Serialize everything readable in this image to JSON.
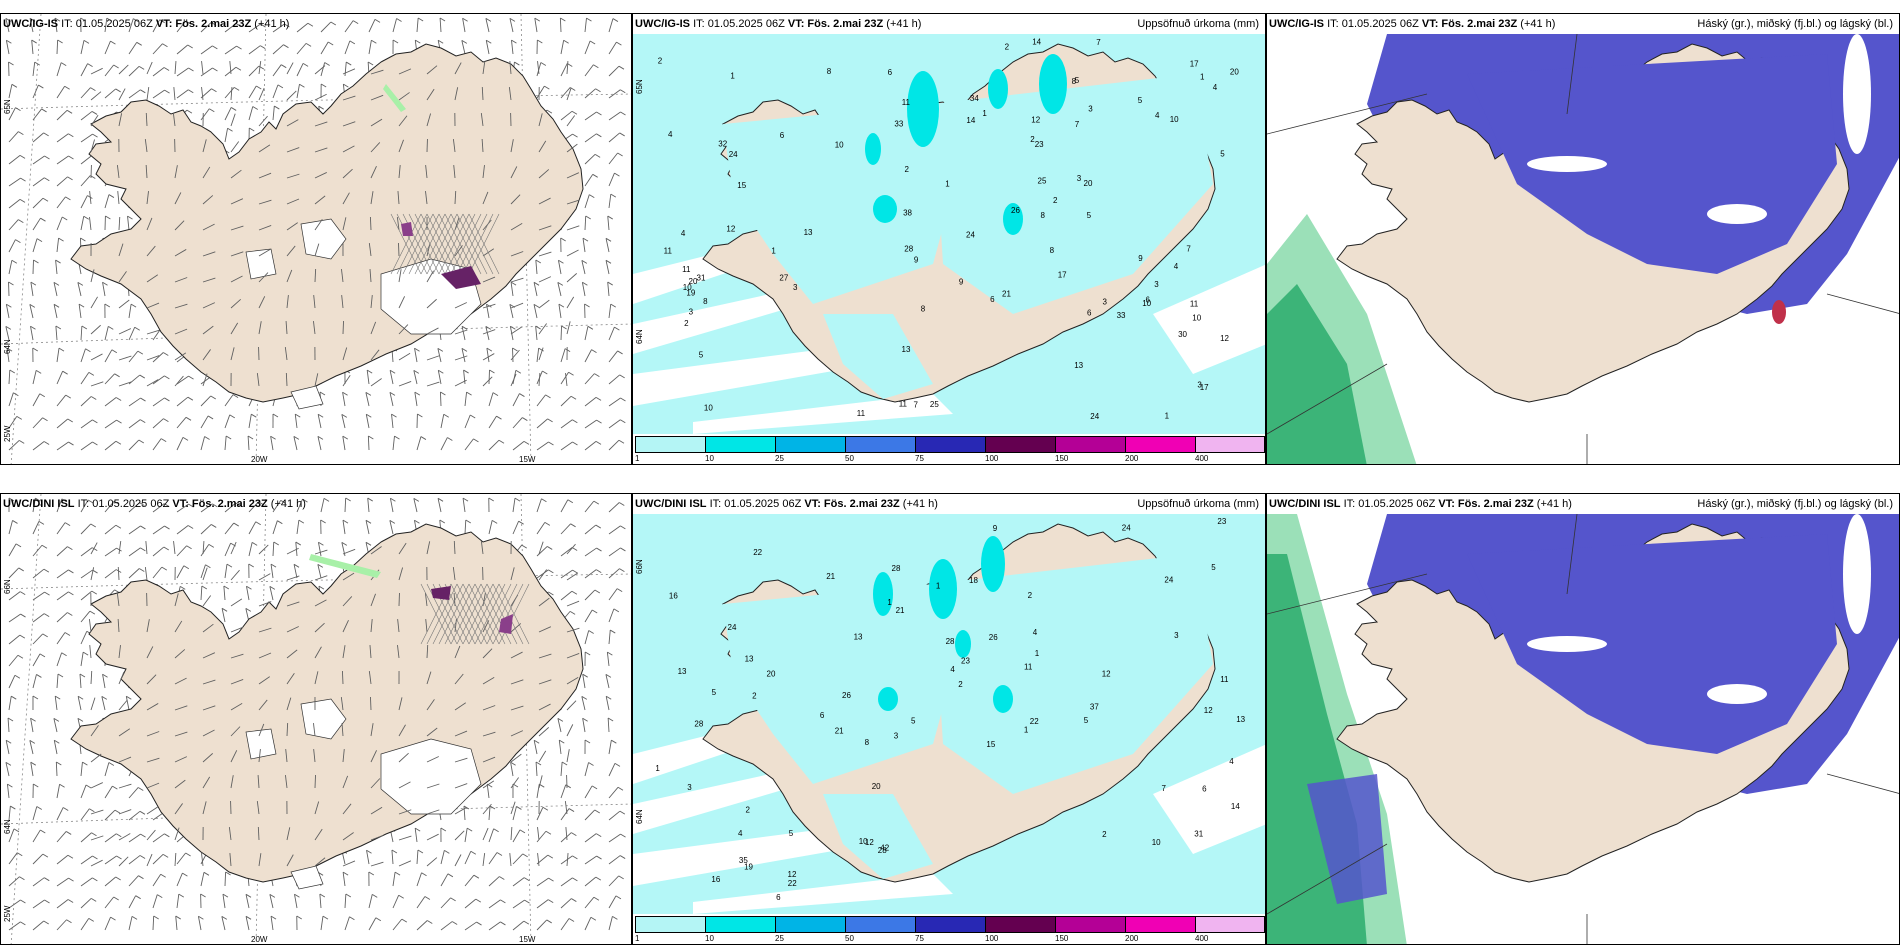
{
  "panels": [
    {
      "id": "r1c1",
      "model": "UWC/IG-IS",
      "it": "IT: 01.05.2025 06Z",
      "vt_label": "VT:",
      "vt": "Fös. 2.mai 23Z",
      "lead": "(+41 h)",
      "right": "",
      "type": "wind",
      "lon_labels": [
        "20W",
        "15W"
      ],
      "lat_labels": [
        "65N",
        "64N",
        "25W"
      ]
    },
    {
      "id": "r1c2",
      "model": "UWC/IG-IS",
      "it": "IT: 01.05.2025 06Z",
      "vt_label": "VT:",
      "vt": "Fös. 2.mai 23Z",
      "lead": "(+41 h)",
      "right": "Uppsöfnuð úrkoma (mm)",
      "type": "precip",
      "lat_labels": [
        "65N",
        "64N"
      ],
      "numbers": [
        "4",
        "3",
        "4",
        "3",
        "4",
        "6",
        "7",
        "7",
        "2",
        "3",
        "5",
        "4",
        "8",
        "8",
        "5",
        "6",
        "5",
        "8",
        "7",
        "5",
        "6",
        "3",
        "10",
        "11",
        "10",
        "9",
        "6",
        "38",
        "32",
        "34",
        "24",
        "27",
        "33",
        "12",
        "10",
        "10",
        "11",
        "20",
        "13",
        "24",
        "25",
        "15",
        "14",
        "23",
        "11",
        "21",
        "17",
        "30",
        "14",
        "12",
        "11",
        "11",
        "12",
        "9",
        "10",
        "8",
        "7",
        "31",
        "20",
        "26",
        "13",
        "9",
        "25",
        "28",
        "33",
        "17",
        "11",
        "5",
        "13",
        "24",
        "10",
        "6",
        "3",
        "4",
        "8",
        "17",
        "8",
        "3",
        "20",
        "19",
        "3",
        "1",
        "1",
        "2",
        "1",
        "1",
        "2",
        "1",
        "1",
        "2",
        "2",
        "2"
      ]
    },
    {
      "id": "r1c3",
      "model": "UWC/IG-IS",
      "it": "IT: 01.05.2025 06Z",
      "vt_label": "VT:",
      "vt": "Fös. 2.mai 23Z",
      "lead": "(+41 h)",
      "right": "Háský (gr.), miðský (fj.bl.) og lágský (bl.)",
      "type": "cloud"
    },
    {
      "id": "r2c1",
      "model": "UWC/DINI ISL",
      "it": "IT: 01.05.2025 06Z",
      "vt_label": "VT:",
      "vt": "Fös. 2.mai 23Z",
      "lead": "(+41 h)",
      "right": "",
      "type": "wind",
      "lon_labels": [
        "20W",
        "15W"
      ],
      "lat_labels": [
        "66N",
        "64N",
        "25W"
      ]
    },
    {
      "id": "r2c2",
      "model": "UWC/DINI ISL",
      "it": "IT: 01.05.2025 06Z",
      "vt_label": "VT:",
      "vt": "Fös. 2.mai 23Z",
      "lead": "(+41 h)",
      "right": "Uppsöfnuð úrkoma (mm)",
      "type": "precip",
      "lat_labels": [
        "66N",
        "64N"
      ],
      "numbers": [
        "3",
        "4",
        "5",
        "5",
        "6",
        "5",
        "7",
        "6",
        "6",
        "4",
        "4",
        "5",
        "12",
        "28",
        "16",
        "12",
        "26",
        "42",
        "13",
        "12",
        "10",
        "18",
        "24",
        "37",
        "9",
        "10",
        "28",
        "28",
        "22",
        "22",
        "11",
        "16",
        "20",
        "21",
        "21",
        "13",
        "24",
        "35",
        "21",
        "22",
        "13",
        "31",
        "23",
        "13",
        "20",
        "19",
        "14",
        "26",
        "15",
        "24",
        "28",
        "23",
        "12",
        "11",
        "8",
        "5",
        "4",
        "3",
        "2",
        "2",
        "1",
        "1",
        "1",
        "1",
        "1",
        "2",
        "2",
        "2",
        "3"
      ]
    },
    {
      "id": "r2c3",
      "model": "UWC/DINI ISL",
      "it": "IT: 01.05.2025 06Z",
      "vt_label": "VT:",
      "vt": "Fös. 2.mai 23Z",
      "lead": "(+41 h)",
      "right": "Háský (gr.), miðský (fj.bl.) og lágský (bl.)",
      "type": "cloud"
    }
  ],
  "colorbar": {
    "labels": [
      "1",
      "10",
      "25",
      "50",
      "75",
      "100",
      "150",
      "200",
      "400"
    ],
    "colors": [
      "#b4f5f5",
      "#00e6e6",
      "#00b4e6",
      "#3c78e6",
      "#2828b4",
      "#640050",
      "#b40096",
      "#f000b4",
      "#f0b4f0"
    ]
  },
  "colors": {
    "land": "#eee0d0",
    "sea_precip": "#b4f7f7",
    "precip_mid": "#00e6e6",
    "cloud_mid": "#5555cc",
    "cloud_high": "#3cb478",
    "barb": "#606060",
    "hatch": "#777777",
    "purple": "#662266"
  }
}
